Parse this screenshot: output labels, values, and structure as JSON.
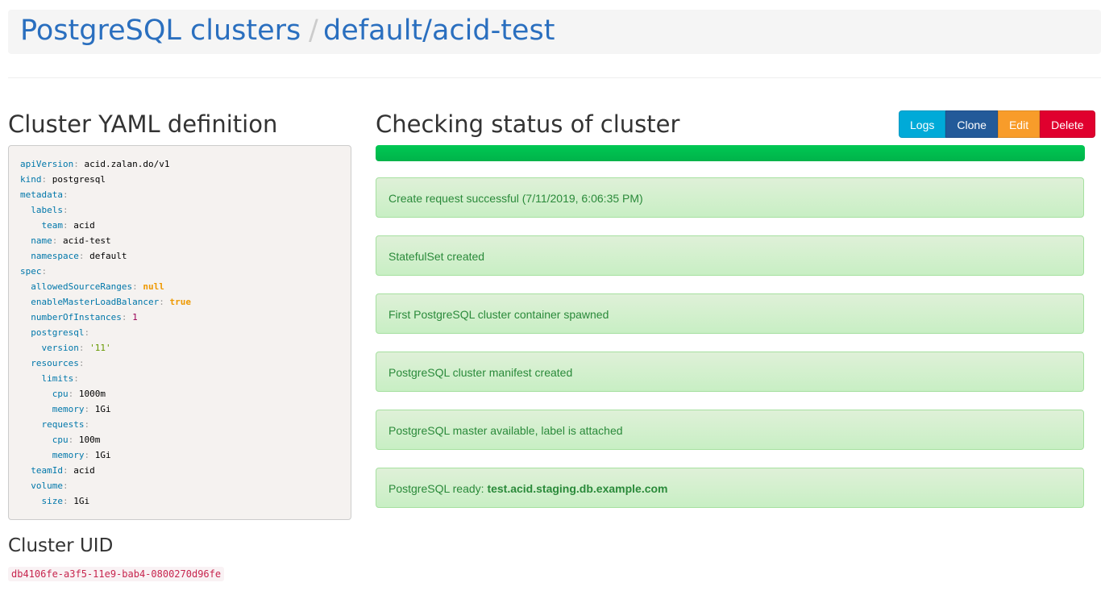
{
  "breadcrumb": {
    "root": "PostgreSQL clusters",
    "separator": "/",
    "current": "default/acid-test"
  },
  "yaml_title": "Cluster YAML definition",
  "yaml_lines": [
    {
      "i": 0,
      "k": "apiVersion",
      "v": "acid.zalan.do/v1",
      "t": "v"
    },
    {
      "i": 0,
      "k": "kind",
      "v": "postgresql",
      "t": "v"
    },
    {
      "i": 0,
      "k": "metadata",
      "v": "",
      "t": "v"
    },
    {
      "i": 1,
      "k": "labels",
      "v": "",
      "t": "v"
    },
    {
      "i": 2,
      "k": "team",
      "v": "acid",
      "t": "v"
    },
    {
      "i": 1,
      "k": "name",
      "v": "acid-test",
      "t": "v"
    },
    {
      "i": 1,
      "k": "namespace",
      "v": "default",
      "t": "v"
    },
    {
      "i": 0,
      "k": "spec",
      "v": "",
      "t": "v"
    },
    {
      "i": 1,
      "k": "allowedSourceRanges",
      "v": "null",
      "t": "b"
    },
    {
      "i": 1,
      "k": "enableMasterLoadBalancer",
      "v": "true",
      "t": "b"
    },
    {
      "i": 1,
      "k": "numberOfInstances",
      "v": "1",
      "t": "n"
    },
    {
      "i": 1,
      "k": "postgresql",
      "v": "",
      "t": "v"
    },
    {
      "i": 2,
      "k": "version",
      "v": "'11'",
      "t": "s"
    },
    {
      "i": 1,
      "k": "resources",
      "v": "",
      "t": "v"
    },
    {
      "i": 2,
      "k": "limits",
      "v": "",
      "t": "v"
    },
    {
      "i": 3,
      "k": "cpu",
      "v": "1000m",
      "t": "v"
    },
    {
      "i": 3,
      "k": "memory",
      "v": "1Gi",
      "t": "v"
    },
    {
      "i": 2,
      "k": "requests",
      "v": "",
      "t": "v"
    },
    {
      "i": 3,
      "k": "cpu",
      "v": "100m",
      "t": "v"
    },
    {
      "i": 3,
      "k": "memory",
      "v": "1Gi",
      "t": "v"
    },
    {
      "i": 1,
      "k": "teamId",
      "v": "acid",
      "t": "v"
    },
    {
      "i": 1,
      "k": "volume",
      "v": "",
      "t": "v"
    },
    {
      "i": 2,
      "k": "size",
      "v": "1Gi",
      "t": "v"
    }
  ],
  "uid_title": "Cluster UID",
  "uid": "db4106fe-a3f5-11e9-bab4-0800270d96fe",
  "status_title": "Checking status of cluster",
  "progress_percent": 100,
  "buttons": [
    {
      "label": "Logs",
      "color": "#00aad8"
    },
    {
      "label": "Clone",
      "color": "#235a99"
    },
    {
      "label": "Edit",
      "color": "#f89c2a"
    },
    {
      "label": "Delete",
      "color": "#e0002e"
    }
  ],
  "alerts": [
    {
      "text": "Create request successful (7/11/2019, 6:06:35 PM)",
      "bold": ""
    },
    {
      "text": "StatefulSet created",
      "bold": ""
    },
    {
      "text": "First PostgreSQL cluster container spawned",
      "bold": ""
    },
    {
      "text": "PostgreSQL cluster manifest created",
      "bold": ""
    },
    {
      "text": "PostgreSQL master available, label is attached",
      "bold": ""
    },
    {
      "text": "PostgreSQL ready: ",
      "bold": "test.acid.staging.db.example.com"
    }
  ]
}
